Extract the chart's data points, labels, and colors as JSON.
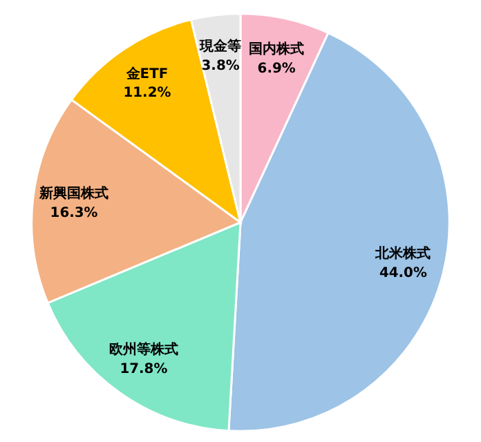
{
  "chart_data": {
    "type": "pie",
    "categories": [
      "国内株式",
      "北米株式",
      "欧州等株式",
      "新興国株式",
      "金ETF",
      "現金等"
    ],
    "values": [
      6.9,
      44.0,
      17.8,
      16.3,
      11.2,
      3.8
    ],
    "value_labels": [
      "6.9%",
      "44.0%",
      "17.8%",
      "16.3%",
      "11.2%",
      "3.8%"
    ],
    "colors": [
      "#f9b6c9",
      "#9dc3e6",
      "#7fe6c6",
      "#f4b183",
      "#ffc000",
      "#e6e6e6"
    ],
    "legend": false
  }
}
